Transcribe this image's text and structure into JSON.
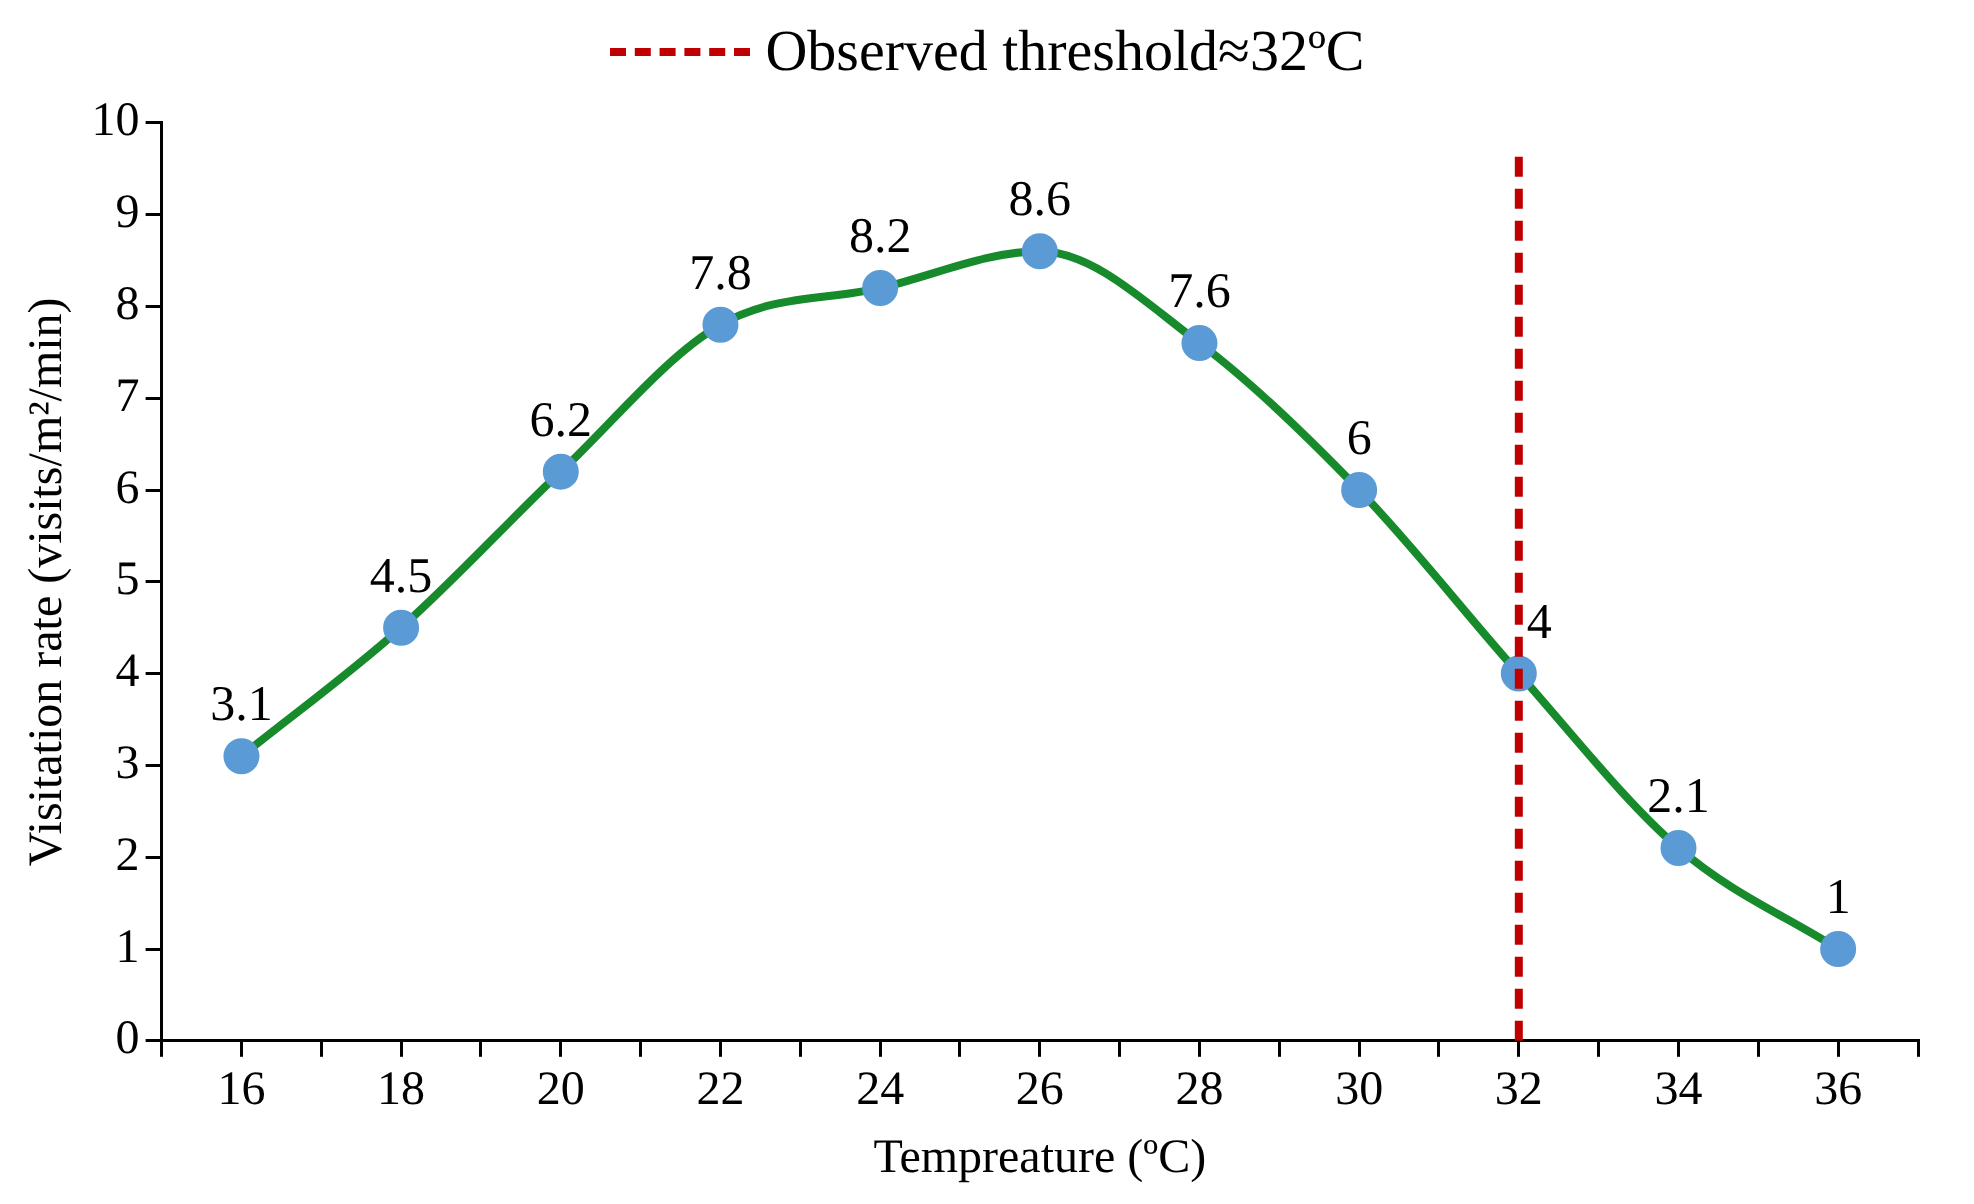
{
  "chart_data": {
    "type": "line",
    "xlabel": "Tempreature (ºC)",
    "ylabel": "Visitation rate (visits/m²/min)",
    "x": [
      16,
      18,
      20,
      22,
      24,
      26,
      28,
      30,
      32,
      34,
      36
    ],
    "series": [
      {
        "color": "#178a2c",
        "values": [
          3.1,
          4.5,
          6.2,
          7.8,
          8.2,
          8.6,
          7.6,
          6,
          4,
          2.1,
          1
        ]
      }
    ],
    "xlim": [
      15,
      37
    ],
    "xticks": [
      {
        "value": 15,
        "label": null
      },
      16,
      {
        "value": 17,
        "label": null
      },
      18,
      {
        "value": 19,
        "label": null
      },
      20,
      {
        "value": 21,
        "label": null
      },
      22,
      {
        "value": 23,
        "label": null
      },
      24,
      {
        "value": 25,
        "label": null
      },
      26,
      {
        "value": 27,
        "label": null
      },
      28,
      {
        "value": 29,
        "label": null
      },
      30,
      {
        "value": 31,
        "label": null
      },
      32,
      {
        "value": 33,
        "label": null
      },
      34,
      {
        "value": 35,
        "label": null
      },
      36,
      {
        "value": 37,
        "label": null
      }
    ],
    "ylim": [
      0,
      10
    ],
    "yticks": [
      0,
      1,
      2,
      3,
      4,
      5,
      6,
      7,
      8,
      9,
      10
    ],
    "ref_lines": [
      {
        "axis": "x",
        "value": 32,
        "label": "Observed threshold≈32ºC",
        "color": "#c00000",
        "line_style": "dashed"
      }
    ],
    "data_labels": true,
    "marker": "circle",
    "legend": "top"
  }
}
